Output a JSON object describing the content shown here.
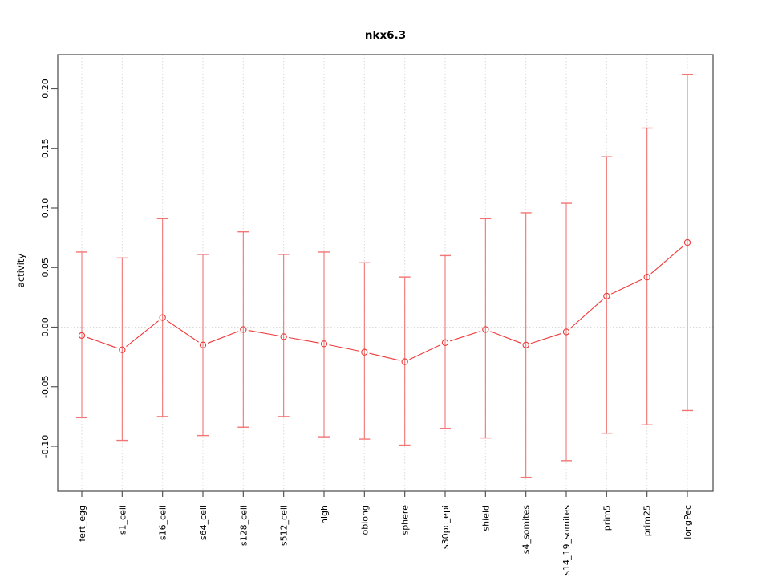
{
  "figure": {
    "background": "#ffffff"
  },
  "chart_data": {
    "type": "line",
    "title": "nkx6.3",
    "xlabel": "",
    "ylabel": "activity",
    "categories": [
      "fert_egg",
      "s1_cell",
      "s16_cell",
      "s64_cell",
      "s128_cell",
      "s512_cell",
      "high",
      "oblong",
      "sphere",
      "s30pc_epi",
      "shield",
      "s4_somites",
      "s14_19_somites",
      "prim5",
      "prim25",
      "longPec"
    ],
    "series": [
      {
        "name": "activity",
        "marker": "open-circle",
        "values": [
          -0.007,
          -0.019,
          0.008,
          -0.015,
          -0.002,
          -0.008,
          -0.014,
          -0.021,
          -0.029,
          -0.013,
          -0.002,
          -0.015,
          -0.004,
          0.026,
          0.042,
          0.071
        ]
      }
    ],
    "error_bars": {
      "upper": [
        0.063,
        0.058,
        0.091,
        0.061,
        0.08,
        0.061,
        0.063,
        0.054,
        0.042,
        0.06,
        0.091,
        0.096,
        0.104,
        0.143,
        0.167,
        0.212
      ],
      "lower": [
        -0.076,
        -0.095,
        -0.075,
        -0.091,
        -0.084,
        -0.075,
        -0.092,
        -0.094,
        -0.099,
        -0.085,
        -0.093,
        -0.126,
        -0.112,
        -0.089,
        -0.082,
        -0.07
      ]
    },
    "yticks": [
      0.2,
      0.15,
      0.1,
      0.05,
      0.0,
      -0.05,
      -0.1
    ],
    "ylim": [
      -0.138,
      0.229
    ],
    "zero_line": 0,
    "grid": "vertical dashed gridlines at each category; dotted horizontal line at 0",
    "legend": "none",
    "tick_label_orientation": "vertical",
    "colors": {
      "series": "#ee3a3a",
      "error_bar": "#f37575",
      "grid": "#d9d9d9",
      "frame": "#555555",
      "text": "#000000"
    }
  }
}
